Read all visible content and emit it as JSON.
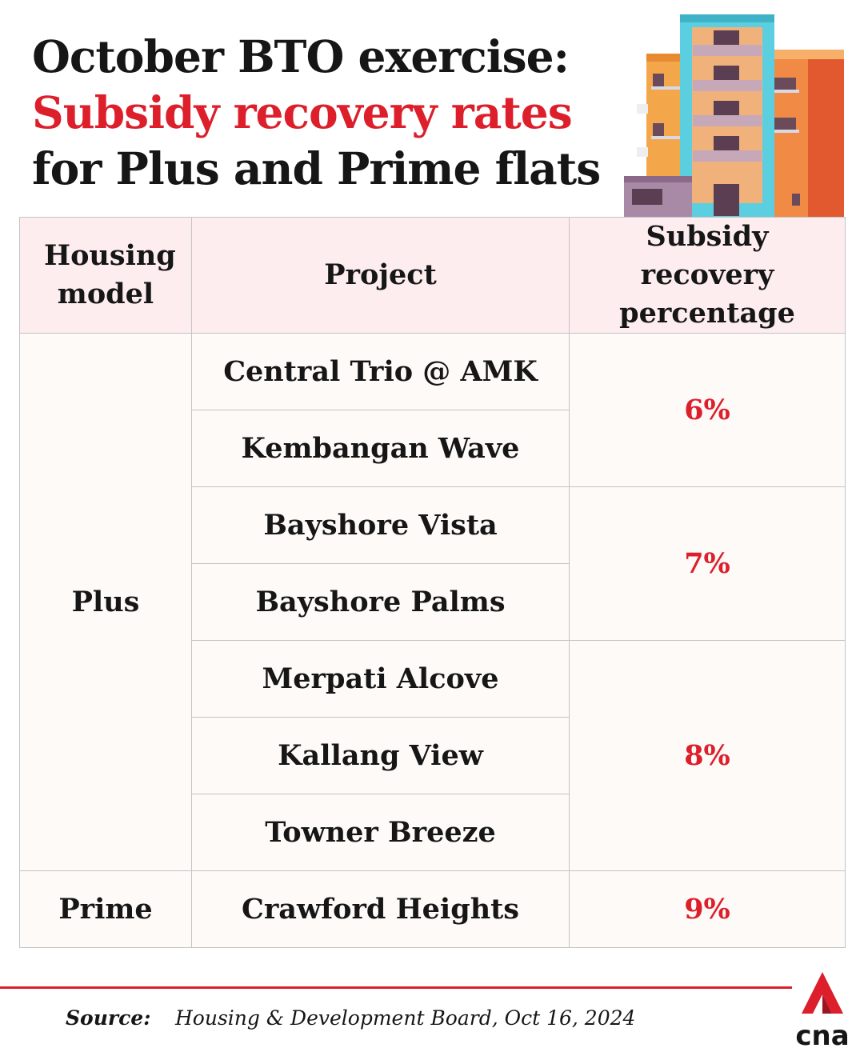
{
  "title": {
    "line1": "October BTO exercise:",
    "line2": "Subsidy recovery rates",
    "line3": "for Plus and Prime flats"
  },
  "colors": {
    "accent": "#dc1f2b",
    "header_bg": "#fdedef",
    "body_bg": "#fdfaf7",
    "border": "#c4c4c4"
  },
  "chart_data": {
    "type": "table",
    "columns": [
      "Housing model",
      "Project",
      "Subsidy recovery percentage"
    ],
    "rows": [
      {
        "housing_model": "Plus",
        "project": "Central Trio @ AMK",
        "subsidy_recovery_percentage": "6%"
      },
      {
        "housing_model": "Plus",
        "project": "Kembangan Wave",
        "subsidy_recovery_percentage": "6%"
      },
      {
        "housing_model": "Plus",
        "project": "Bayshore Vista",
        "subsidy_recovery_percentage": "7%"
      },
      {
        "housing_model": "Plus",
        "project": "Bayshore Palms",
        "subsidy_recovery_percentage": "7%"
      },
      {
        "housing_model": "Plus",
        "project": "Merpati Alcove",
        "subsidy_recovery_percentage": "8%"
      },
      {
        "housing_model": "Plus",
        "project": "Kallang View",
        "subsidy_recovery_percentage": "8%"
      },
      {
        "housing_model": "Plus",
        "project": "Towner Breeze",
        "subsidy_recovery_percentage": "8%"
      },
      {
        "housing_model": "Prime",
        "project": "Crawford Heights",
        "subsidy_recovery_percentage": "9%"
      }
    ]
  },
  "source": {
    "label": "Source:",
    "text": "Housing & Development Board, Oct 16, 2024"
  },
  "logo": {
    "text": "cna",
    "icon": "cna-logo-icon"
  },
  "illustration": {
    "icon": "apartment-buildings-icon"
  }
}
